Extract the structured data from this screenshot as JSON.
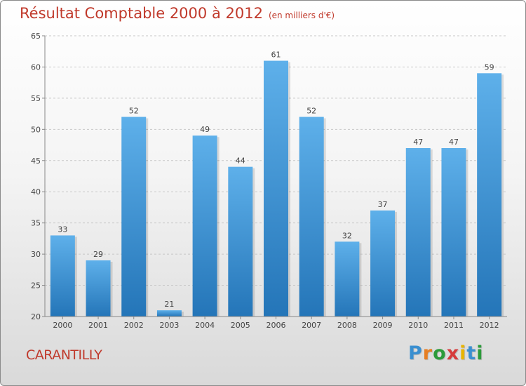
{
  "header": {
    "title": "Résultat Comptable 2000 à 2012",
    "unit": "(en milliers d'€)"
  },
  "footer": {
    "location": "CARANTILLY",
    "brand": "Proxiti"
  },
  "colors": {
    "bar": "#3d94d6",
    "bar_light": "#5eb0ea",
    "bar_dark": "#2475b8",
    "title": "#c0392b"
  },
  "chart_data": {
    "type": "bar",
    "title": "Résultat Comptable 2000 à 2012",
    "subtitle": "(en milliers d'€)",
    "xlabel": "",
    "ylabel": "",
    "categories": [
      "2000",
      "2001",
      "2002",
      "2003",
      "2004",
      "2005",
      "2006",
      "2007",
      "2008",
      "2009",
      "2010",
      "2011",
      "2012"
    ],
    "values": [
      33,
      29,
      52,
      21,
      49,
      44,
      61,
      52,
      32,
      37,
      47,
      47,
      59
    ],
    "ylim": [
      20,
      65
    ],
    "yticks": [
      20,
      25,
      30,
      35,
      40,
      45,
      50,
      55,
      60,
      65
    ],
    "grid": "horizontal dashed",
    "data_labels": true
  }
}
